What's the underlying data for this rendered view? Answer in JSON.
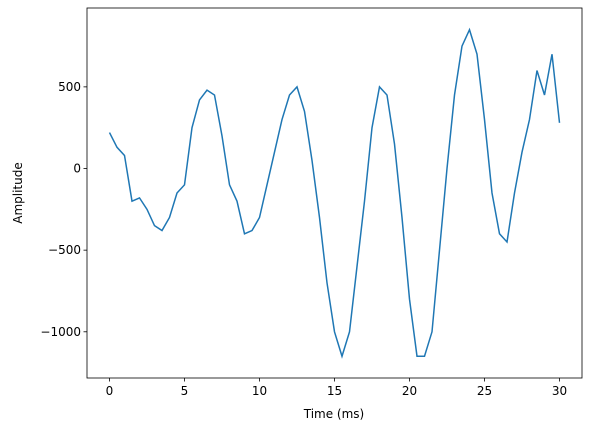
{
  "chart_data": {
    "type": "line",
    "xlabel": "Time (ms)",
    "ylabel": "Amplitude",
    "x": [
      0,
      0.5,
      1,
      1.5,
      2,
      2.5,
      3,
      3.5,
      4,
      4.5,
      5,
      5.5,
      6,
      6.5,
      7,
      7.5,
      8,
      8.5,
      9,
      9.5,
      10,
      10.5,
      11,
      11.5,
      12,
      12.5,
      13,
      13.5,
      14,
      14.5,
      15,
      15.5,
      16,
      16.5,
      17,
      17.5,
      18,
      18.5,
      19,
      19.5,
      20,
      20.5,
      21,
      21.5,
      22,
      22.5,
      23,
      23.5,
      24,
      24.5,
      25,
      25.5,
      26,
      26.5,
      27,
      27.5,
      28,
      28.5,
      29,
      29.5,
      30
    ],
    "series": [
      {
        "name": "Amplitude",
        "color": "#1f77b4",
        "values": [
          220,
          130,
          80,
          -200,
          -180,
          -250,
          -350,
          -380,
          -300,
          -150,
          -100,
          250,
          420,
          480,
          450,
          200,
          -100,
          -200,
          -400,
          -380,
          -300,
          -100,
          100,
          300,
          450,
          500,
          350,
          50,
          -300,
          -700,
          -1000,
          -1150,
          -1000,
          -600,
          -200,
          250,
          500,
          450,
          150,
          -300,
          -800,
          -1150,
          -1150,
          -1000,
          -500,
          0,
          450,
          750,
          850,
          700,
          300,
          -150,
          -400,
          -450,
          -150,
          100,
          300,
          600,
          450,
          700,
          280
        ]
      }
    ],
    "xlim": [
      -1.5,
      31.5
    ],
    "xticks": [
      0,
      5,
      10,
      15,
      20,
      25,
      30
    ],
    "ylim": [
      -1283,
      983
    ],
    "yticks": [
      {
        "value": -1000,
        "label": "−1000"
      },
      {
        "value": -500,
        "label": "−500"
      },
      0,
      500
    ],
    "grid": false
  }
}
